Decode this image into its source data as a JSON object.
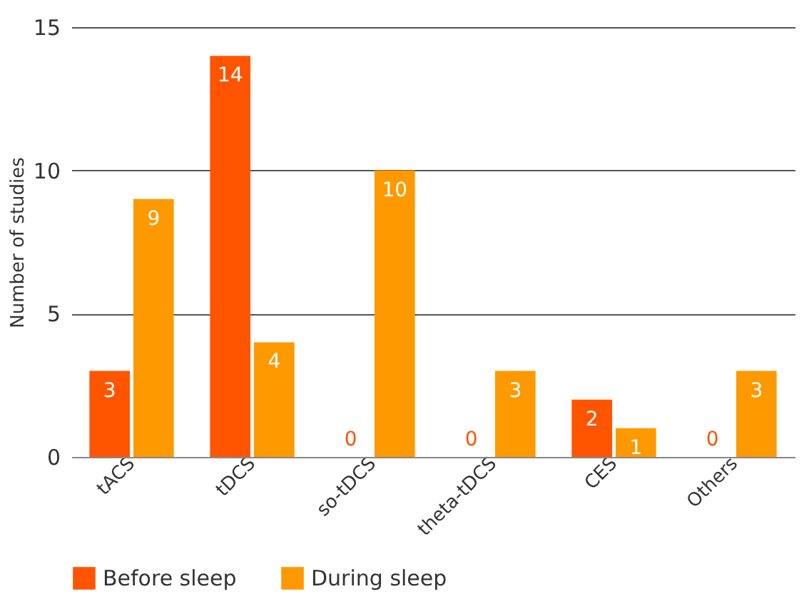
{
  "chart_data": {
    "type": "bar",
    "ylabel": "Number of studies",
    "categories": [
      "tACS",
      "tDCS",
      "so-tDCS",
      "theta-tDCS",
      "CES",
      "Others"
    ],
    "series": [
      {
        "name": "Before sleep",
        "color": "#ff5500",
        "values": [
          3,
          14,
          0,
          0,
          2,
          0
        ]
      },
      {
        "name": "During sleep",
        "color": "#ff9900",
        "values": [
          9,
          4,
          10,
          3,
          1,
          3
        ]
      }
    ],
    "ylim": [
      0,
      15
    ],
    "yticks": [
      0,
      5,
      10,
      15
    ],
    "grid": "y",
    "legend": "bottom",
    "data_labels": true
  }
}
